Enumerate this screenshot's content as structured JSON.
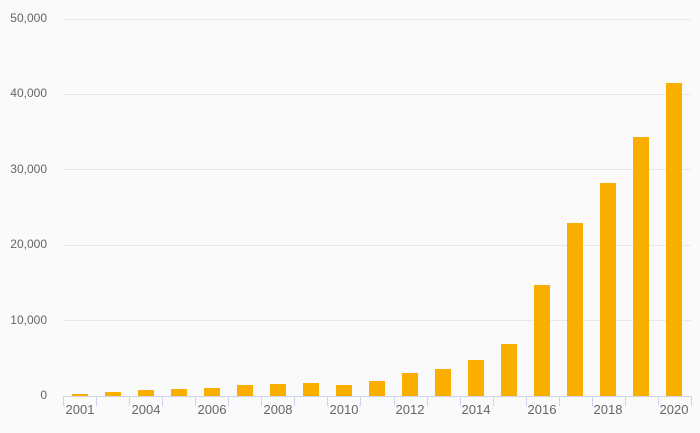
{
  "chart_data": {
    "type": "bar",
    "title": "",
    "xlabel": "",
    "ylabel": "",
    "categories": [
      "2001",
      "2002",
      "2004",
      "2005",
      "2006",
      "2007",
      "2008",
      "2009",
      "2010",
      "2011",
      "2012",
      "2013",
      "2014",
      "2015",
      "2016",
      "2017",
      "2018",
      "2019",
      "2020"
    ],
    "values": [
      300,
      550,
      800,
      880,
      1000,
      1400,
      1650,
      1750,
      1450,
      2000,
      3100,
      3550,
      4800,
      6900,
      14700,
      23000,
      28300,
      34400,
      41500
    ],
    "visible_x_labels": [
      "2001",
      "2004",
      "2006",
      "2008",
      "2010",
      "2012",
      "2014",
      "2016",
      "2018",
      "2020"
    ],
    "y_ticks": [
      0,
      10000,
      20000,
      30000,
      40000,
      50000
    ],
    "y_tick_labels": [
      "0",
      "10,000",
      "20,000",
      "30,000",
      "40,000",
      "50,000"
    ],
    "ylim": [
      0,
      50000
    ],
    "grid": true,
    "legend": "none",
    "colors": {
      "bar": "#faaf00",
      "background": "#fafafa",
      "gridline": "#e8e8e8",
      "axis": "#ccd6eb",
      "label_text": "#666666"
    }
  }
}
